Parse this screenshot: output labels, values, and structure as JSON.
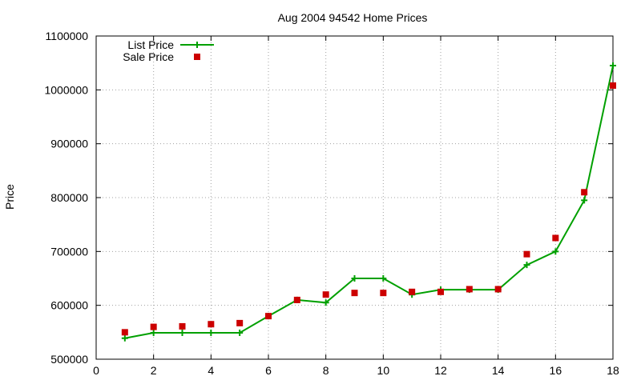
{
  "chart_data": {
    "type": "line",
    "title": "Aug 2004 94542 Home Prices",
    "xlabel": "",
    "ylabel": "Price",
    "xlim": [
      0,
      18
    ],
    "ylim": [
      500000,
      1100000
    ],
    "xticks": [
      0,
      2,
      4,
      6,
      8,
      10,
      12,
      14,
      16,
      18
    ],
    "yticks": [
      500000,
      600000,
      700000,
      800000,
      900000,
      1000000,
      1100000
    ],
    "grid": true,
    "legend_position": "top-left",
    "colors": {
      "list": "#00a000",
      "sale": "#cc0000",
      "grid": "#a0a0a0"
    },
    "series": [
      {
        "name": "List Price",
        "style": "line-with-plus-markers",
        "x": [
          1,
          2,
          3,
          4,
          5,
          6,
          7,
          8,
          9,
          10,
          11,
          12,
          13,
          14,
          15,
          16,
          17,
          18
        ],
        "values": [
          539000,
          549000,
          549000,
          549000,
          549000,
          580000,
          610000,
          605000,
          650000,
          650000,
          620000,
          629000,
          629000,
          629000,
          675000,
          700000,
          795000,
          1045000
        ]
      },
      {
        "name": "Sale Price",
        "style": "square-points",
        "x": [
          1,
          2,
          3,
          4,
          5,
          6,
          7,
          8,
          9,
          10,
          11,
          12,
          13,
          14,
          15,
          16,
          17,
          18
        ],
        "values": [
          550000,
          560000,
          561000,
          565000,
          567000,
          580000,
          610000,
          620000,
          623000,
          623000,
          625000,
          625000,
          630000,
          630000,
          695000,
          725000,
          810000,
          1008000
        ]
      }
    ]
  }
}
